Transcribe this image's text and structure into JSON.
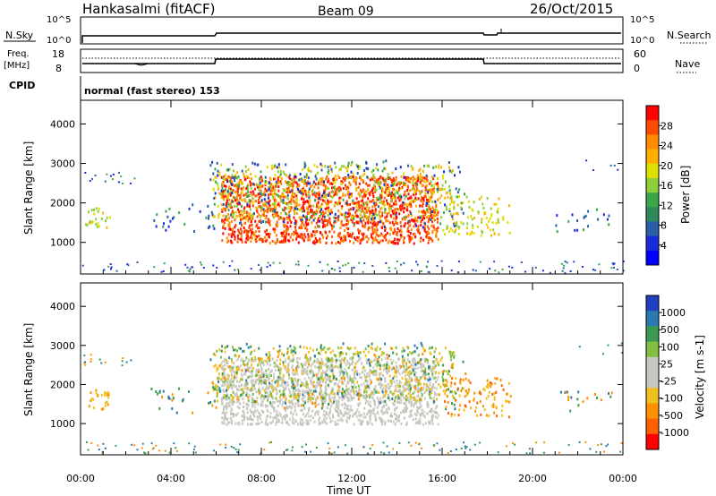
{
  "header": {
    "station": "Hankasalmi (fitACF)",
    "beam": "Beam 09",
    "date": "26/Oct/2015"
  },
  "status_panels": {
    "nsky_label": "N.Sky",
    "nsearch_label": "N.Search",
    "sky_ticks": [
      "10^5",
      "10^0"
    ],
    "search_ticks": [
      "10^5",
      "10^0"
    ],
    "freq_label": "Freq.",
    "freq_unit": "[MHz]",
    "freq_ticks": [
      "18",
      "8"
    ],
    "nave_label": "Nave",
    "nave_ticks": [
      "60",
      "0"
    ],
    "cpid_label": "CPID",
    "cpid_value": "normal (fast stereo) 153"
  },
  "chart_data": [
    {
      "type": "heatmap",
      "name": "power-panel",
      "ylabel": "Slant Range [km]",
      "ylim": [
        200,
        4600
      ],
      "y_ticks": [
        1000,
        2000,
        3000,
        4000
      ],
      "x_ticks": [
        "00:00",
        "04:00",
        "08:00",
        "12:00",
        "16:00",
        "20:00",
        "00:00"
      ],
      "colorbar": {
        "label": "Power [dB]",
        "ticks": [
          "28",
          "24",
          "20",
          "16",
          "12",
          "8",
          "4"
        ],
        "colors": [
          "#ff0000",
          "#ff4a00",
          "#ff8c00",
          "#ffb000",
          "#e0e000",
          "#8ccf3a",
          "#3aa64a",
          "#2e8a5a",
          "#2a5ea8",
          "#1a2cd8",
          "#0000ff"
        ]
      }
    },
    {
      "type": "heatmap",
      "name": "velocity-panel",
      "ylabel": "Slant Range [km]",
      "ylim": [
        200,
        4600
      ],
      "y_ticks": [
        1000,
        2000,
        3000,
        4000
      ],
      "x_ticks": [
        "00:00",
        "04:00",
        "08:00",
        "12:00",
        "16:00",
        "20:00",
        "00:00"
      ],
      "xlabel": "Time UT",
      "colorbar": {
        "label": "Velocity [m s-1]",
        "ticks": [
          "1000",
          "500",
          "100",
          "25",
          "-25",
          "-100",
          "-500",
          "-1000"
        ],
        "colors": [
          "#2040c0",
          "#2a7ab0",
          "#3a9a50",
          "#80c040",
          "#c8c8c0",
          "#c8c8c0",
          "#f0c020",
          "#ff9000",
          "#ff6000",
          "#ff0000"
        ]
      }
    }
  ]
}
